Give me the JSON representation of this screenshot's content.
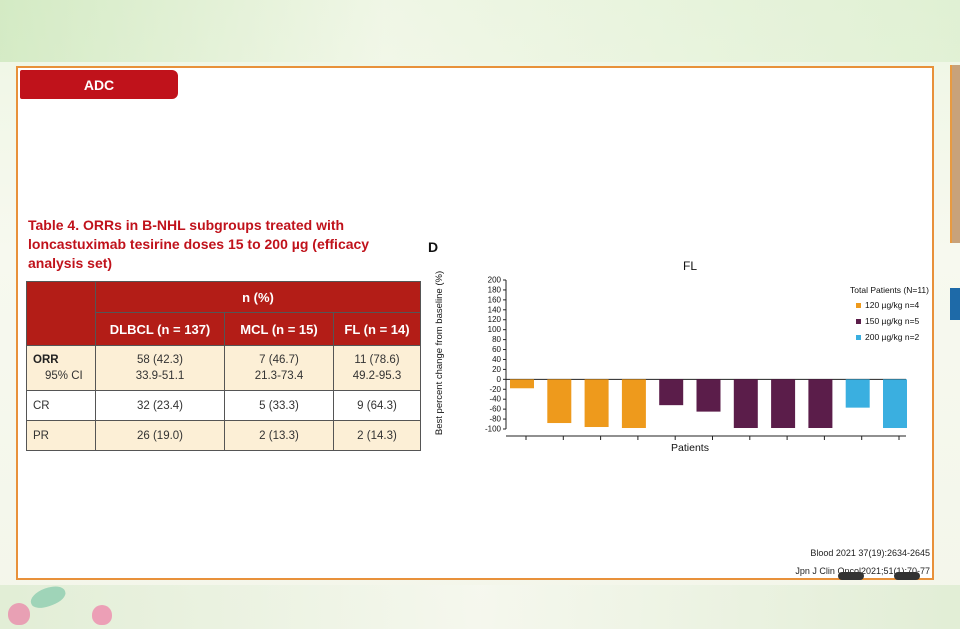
{
  "slide": {
    "tag": "ADC",
    "table_title": "Table 4. ORRs in B-NHL subgroups treated with loncastuximab tesirine doses 15 to 200 µg (efficacy analysis set)",
    "table": {
      "group_header": "n (%)",
      "columns": [
        "DLBCL (n = 137)",
        "MCL (n = 15)",
        "FL (n = 14)"
      ],
      "rows": [
        {
          "label": "ORR",
          "sublabel": "95% CI",
          "values": [
            "58 (42.3)",
            "7 (46.7)",
            "11 (78.6)"
          ],
          "ci": [
            "33.9-51.1",
            "21.3-73.4",
            "49.2-95.3"
          ]
        },
        {
          "label": "CR",
          "values": [
            "32 (23.4)",
            "5 (33.3)",
            "9 (64.3)"
          ]
        },
        {
          "label": "PR",
          "values": [
            "26 (19.0)",
            "2 (13.3)",
            "2 (14.3)"
          ]
        }
      ]
    },
    "references": [
      "Blood 2021 37(19):2634-2645",
      "Jpn J Clin Oncol2021;51(1):70-77"
    ]
  },
  "chart_data": {
    "type": "bar",
    "panel_label": "D",
    "title": "FL",
    "xlabel": "Patients",
    "ylabel": "Best percent change from baseline (%)",
    "ylim": [
      -100,
      200
    ],
    "yticks": [
      200,
      180,
      160,
      140,
      120,
      100,
      80,
      60,
      40,
      20,
      0,
      -20,
      -40,
      -60,
      -80,
      -100
    ],
    "legend_title": "Total Patients (N=11)",
    "series": [
      {
        "name": "120 µg/kg n=4",
        "color": "#ee9a1c",
        "values": [
          -18,
          -88,
          -96,
          -98
        ]
      },
      {
        "name": "150 µg/kg n=5",
        "color": "#5b1d4a",
        "values": [
          -52,
          -65,
          -98,
          -98,
          -98
        ]
      },
      {
        "name": "200 µg/kg n=2",
        "color": "#3aafe0",
        "values": [
          -57,
          -98
        ]
      }
    ]
  }
}
